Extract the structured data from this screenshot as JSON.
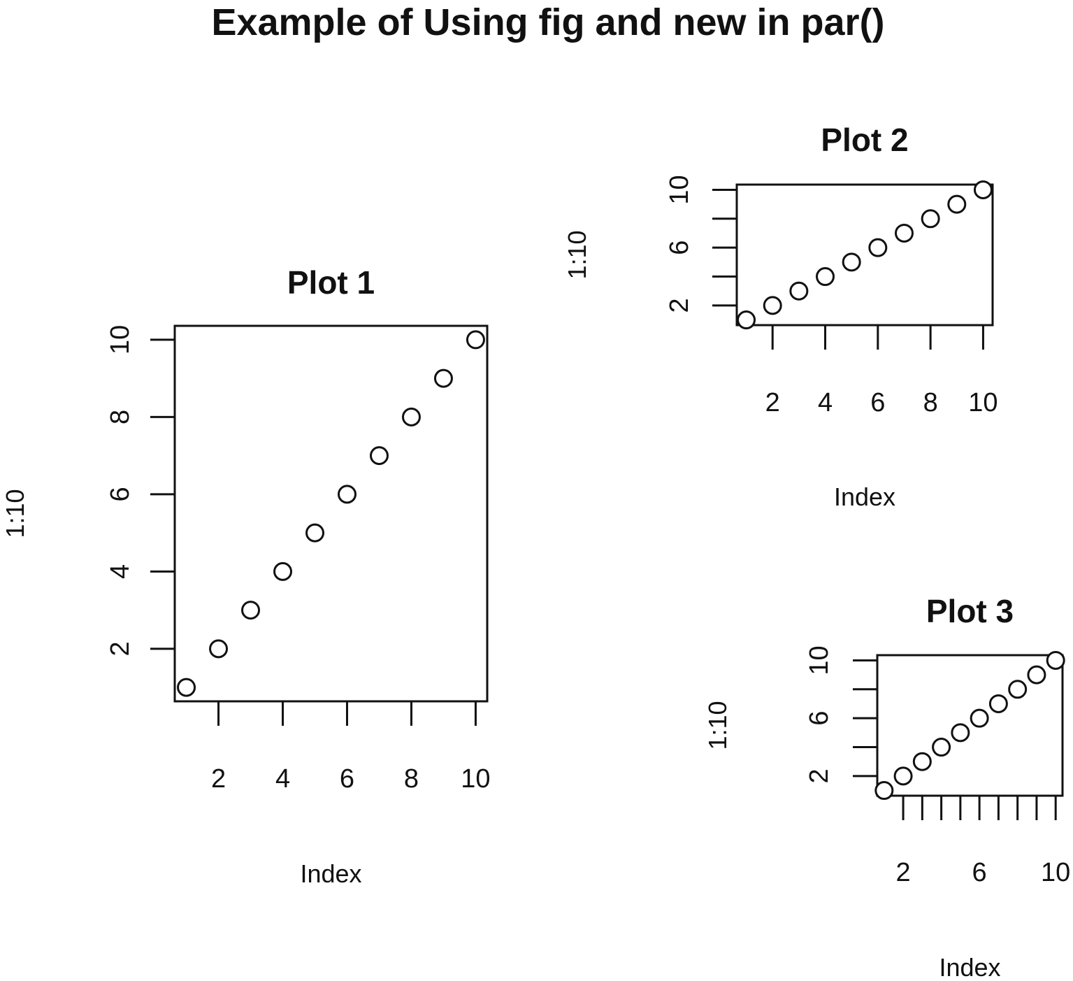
{
  "figure": {
    "title": "Example of Using fig and new in par()"
  },
  "chart_data": [
    {
      "type": "scatter",
      "title": "Plot 1",
      "xlabel": "Index",
      "ylabel": "1:10",
      "x": [
        1,
        2,
        3,
        4,
        5,
        6,
        7,
        8,
        9,
        10
      ],
      "y": [
        1,
        2,
        3,
        4,
        5,
        6,
        7,
        8,
        9,
        10
      ],
      "xlim": [
        0.64,
        10.36
      ],
      "ylim": [
        0.64,
        10.36
      ],
      "xticks": [
        2,
        4,
        6,
        8,
        10
      ],
      "yticks": [
        2,
        4,
        6,
        8,
        10
      ],
      "marker": "open-circle",
      "grid": false
    },
    {
      "type": "scatter",
      "title": "Plot 2",
      "xlabel": "Index",
      "ylabel": "1:10",
      "x": [
        1,
        2,
        3,
        4,
        5,
        6,
        7,
        8,
        9,
        10
      ],
      "y": [
        1,
        2,
        3,
        4,
        5,
        6,
        7,
        8,
        9,
        10
      ],
      "xlim": [
        0.64,
        10.36
      ],
      "ylim": [
        0.64,
        10.36
      ],
      "xticks": [
        2,
        4,
        6,
        8,
        10
      ],
      "yticks": [
        2,
        4,
        6,
        8,
        10
      ],
      "ytick_labels": [
        "2",
        "",
        "6",
        "",
        "10"
      ],
      "marker": "open-circle",
      "grid": false
    },
    {
      "type": "scatter",
      "title": "Plot 3",
      "xlabel": "Index",
      "ylabel": "1:10",
      "x": [
        1,
        2,
        3,
        4,
        5,
        6,
        7,
        8,
        9,
        10
      ],
      "y": [
        1,
        2,
        3,
        4,
        5,
        6,
        7,
        8,
        9,
        10
      ],
      "xlim": [
        0.64,
        10.36
      ],
      "ylim": [
        0.64,
        10.36
      ],
      "xticks": [
        2,
        3,
        4,
        5,
        6,
        7,
        8,
        9,
        10
      ],
      "xtick_labels": [
        "2",
        "",
        "",
        "",
        "6",
        "",
        "",
        "",
        "10"
      ],
      "yticks": [
        2,
        4,
        6,
        8,
        10
      ],
      "ytick_labels": [
        "2",
        "",
        "6",
        "",
        "10"
      ],
      "marker": "open-circle",
      "grid": false
    }
  ]
}
